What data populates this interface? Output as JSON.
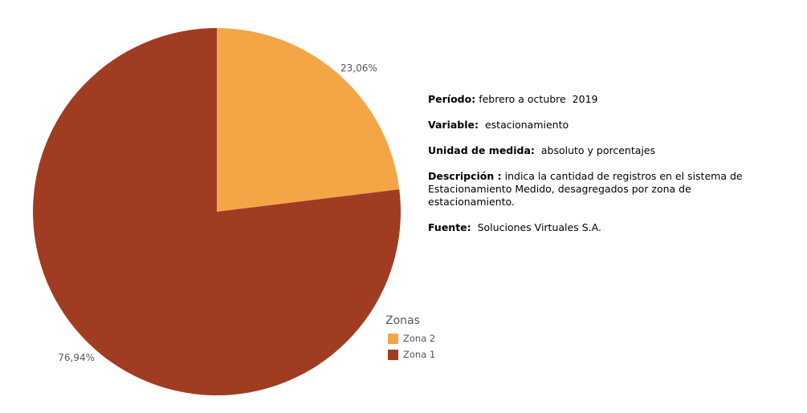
{
  "chart_data": {
    "type": "pie",
    "slices": [
      {
        "label": "Zona 2",
        "value": 23.06,
        "value_label": "23,06%",
        "color": "#F4A646"
      },
      {
        "label": "Zona 1",
        "value": 76.94,
        "value_label": "76,94%",
        "color": "#A03C22"
      }
    ],
    "legend_title": "Zonas",
    "legend_placement": "bottom-right"
  },
  "legend": {
    "title": "Zonas",
    "items": [
      {
        "label": "Zona 2",
        "color": "#F4A646"
      },
      {
        "label": "Zona 1",
        "color": "#A03C22"
      }
    ]
  },
  "info": {
    "periodo_label": "Período:",
    "periodo_value": " febrero a octubre  2019",
    "variable_label": "Variable:",
    "variable_value": "  estacionamiento",
    "unidad_label": "Unidad de medida:",
    "unidad_value": "  absoluto y porcentajes",
    "descripcion_label": "Descripción :",
    "descripcion_value": " indica la cantidad de  registros en el sistema de Estacionamiento Medido, desagregados por zona de estacionamiento.",
    "fuente_label": "Fuente:",
    "fuente_value": "  Soluciones Virtuales S.A."
  }
}
